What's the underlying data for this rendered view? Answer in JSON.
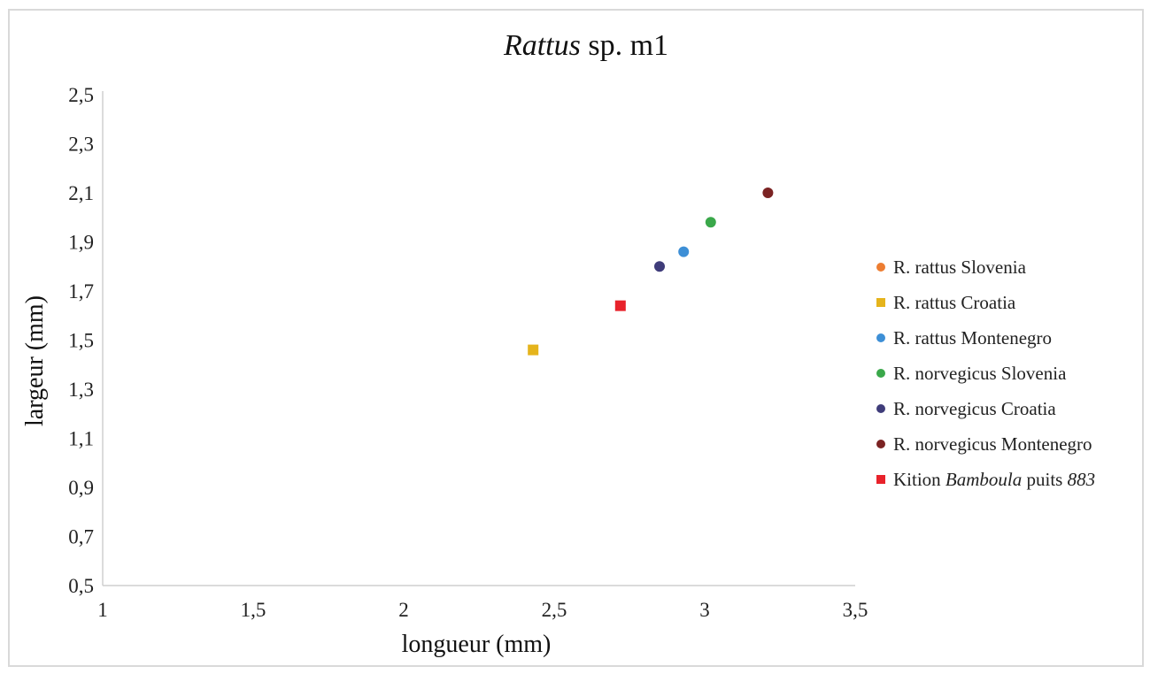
{
  "chart_data": {
    "type": "scatter",
    "title_parts": [
      {
        "text": "Rattus",
        "italic": true
      },
      {
        "text": " sp. m1",
        "italic": false
      }
    ],
    "xlabel": "longueur (mm)",
    "ylabel": "largeur (mm)",
    "xlim": [
      1,
      3.5
    ],
    "ylim": [
      0.5,
      2.5
    ],
    "x_ticks": [
      1,
      1.5,
      2,
      2.5,
      3,
      3.5
    ],
    "x_tick_labels": [
      "1",
      "1,5",
      "2",
      "2,5",
      "3",
      "3,5"
    ],
    "y_ticks": [
      0.5,
      0.7,
      0.9,
      1.1,
      1.3,
      1.5,
      1.7,
      1.9,
      2.1,
      2.3,
      2.5
    ],
    "y_tick_labels": [
      "0,5",
      "0,7",
      "0,9",
      "1,1",
      "1,3",
      "1,5",
      "1,7",
      "1,9",
      "2,1",
      "2,3",
      "2,5"
    ],
    "grid": false,
    "legend_position": "right",
    "series": [
      {
        "name_parts": [
          {
            "text": "R. rattus Slovenia",
            "italic": false
          }
        ],
        "color": "#ed7d31",
        "marker": "circle",
        "points": []
      },
      {
        "name_parts": [
          {
            "text": "R. rattus Croatia",
            "italic": false
          }
        ],
        "color": "#e5b41c",
        "marker": "square",
        "points": [
          [
            2.43,
            1.46
          ]
        ]
      },
      {
        "name_parts": [
          {
            "text": "R. rattus Montenegro",
            "italic": false
          }
        ],
        "color": "#3d8fd6",
        "marker": "circle",
        "points": [
          [
            2.93,
            1.86
          ]
        ]
      },
      {
        "name_parts": [
          {
            "text": "R. norvegicus Slovenia",
            "italic": false
          }
        ],
        "color": "#3aa84a",
        "marker": "circle",
        "points": [
          [
            3.02,
            1.98
          ]
        ]
      },
      {
        "name_parts": [
          {
            "text": "R. norvegicus Croatia",
            "italic": false
          }
        ],
        "color": "#3f3c7a",
        "marker": "circle",
        "points": [
          [
            2.85,
            1.8
          ]
        ]
      },
      {
        "name_parts": [
          {
            "text": "R. norvegicus Montenegro",
            "italic": false
          }
        ],
        "color": "#7b2323",
        "marker": "circle",
        "points": [
          [
            3.21,
            2.1
          ]
        ]
      },
      {
        "name_parts": [
          {
            "text": "Kition ",
            "italic": false
          },
          {
            "text": "Bamboula",
            "italic": true
          },
          {
            "text": " puits ",
            "italic": false
          },
          {
            "text": "883",
            "italic": true
          }
        ],
        "color": "#e8222b",
        "marker": "square",
        "points": [
          [
            2.72,
            1.64
          ]
        ]
      }
    ]
  }
}
